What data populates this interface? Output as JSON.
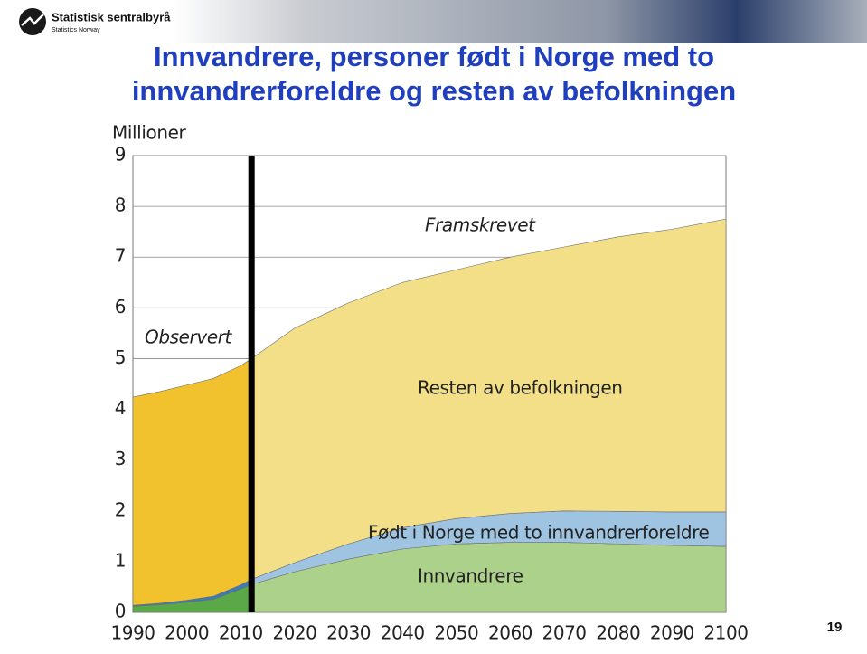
{
  "header": {
    "logo_name": "Statistisk sentralbyrå",
    "logo_subname": "Statistics Norway"
  },
  "page_number": "19",
  "chart_data": {
    "type": "stacked_area",
    "title": "Innvandrere, personer født i Norge med to innvandrerforeldre og resten av befolkningen",
    "y_label": "Millioner",
    "x": [
      1990,
      1995,
      2000,
      2005,
      2010,
      2012,
      2020,
      2030,
      2040,
      2050,
      2060,
      2070,
      2080,
      2090,
      2100
    ],
    "series": [
      {
        "name": "Innvandrere",
        "color": "#5aa847",
        "projected_color": "#acd18a",
        "values": [
          0.12,
          0.15,
          0.2,
          0.26,
          0.46,
          0.55,
          0.8,
          1.05,
          1.25,
          1.35,
          1.38,
          1.38,
          1.35,
          1.32,
          1.3
        ]
      },
      {
        "name": "Født i Norge med to innvandrerforeldre",
        "color": "#3a7cb8",
        "projected_color": "#9ec4e2",
        "values": [
          0.02,
          0.03,
          0.04,
          0.06,
          0.08,
          0.1,
          0.18,
          0.3,
          0.42,
          0.5,
          0.57,
          0.62,
          0.64,
          0.66,
          0.68
        ]
      },
      {
        "name": "Resten av befolkningen",
        "color": "#f2c22e",
        "projected_color": "#f3df87",
        "values": [
          4.1,
          4.17,
          4.24,
          4.29,
          4.32,
          4.35,
          4.62,
          4.75,
          4.83,
          4.9,
          5.05,
          5.2,
          5.41,
          5.57,
          5.77
        ]
      }
    ],
    "forecast_start": 2012,
    "annotations": [
      "Observert",
      "Framskrevet"
    ],
    "xlim": [
      1990,
      2100
    ],
    "xticks": [
      1990,
      2000,
      2010,
      2020,
      2030,
      2040,
      2050,
      2060,
      2070,
      2080,
      2090,
      2100
    ],
    "ylim": [
      0,
      9
    ],
    "yticks": [
      0,
      1,
      2,
      3,
      4,
      5,
      6,
      7,
      8,
      9
    ],
    "grid": true
  }
}
